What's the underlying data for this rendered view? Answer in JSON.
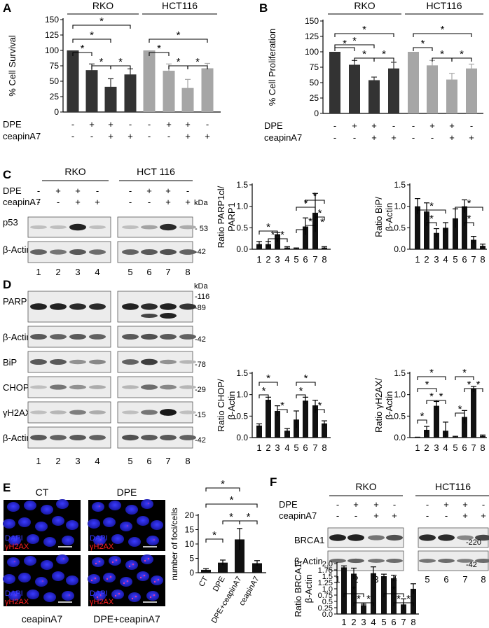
{
  "panels": {
    "A": {
      "letter": "A",
      "groups": [
        "RKO",
        "HCT116"
      ],
      "ylabel": "% Cell Survival",
      "yticks": [
        "0",
        "25",
        "50",
        "75",
        "100",
        "125",
        "150"
      ],
      "row_labels": [
        "DPE",
        "ceapinA7"
      ],
      "dpe_signs": [
        "-",
        "+",
        "+",
        "-",
        "-",
        "+",
        "+",
        "-"
      ],
      "ceapin_signs": [
        "-",
        "-",
        "+",
        "+",
        "-",
        "-",
        "+",
        "+"
      ],
      "star": "*"
    },
    "B": {
      "letter": "B",
      "groups": [
        "RKO",
        "HCT116"
      ],
      "ylabel": "% Cell Proliferation",
      "yticks": [
        "0",
        "25",
        "50",
        "75",
        "100",
        "125",
        "150"
      ],
      "row_labels": [
        "DPE",
        "ceapinA7"
      ],
      "dpe_signs": [
        "-",
        "+",
        "+",
        "-",
        "-",
        "+",
        "+",
        "-"
      ],
      "ceapin_signs": [
        "-",
        "-",
        "+",
        "+",
        "-",
        "-",
        "+",
        "+"
      ],
      "star": "*"
    },
    "C": {
      "letter": "C",
      "groups": [
        "RKO",
        "HCT 116"
      ],
      "row_labels": [
        "DPE",
        "ceapinA7"
      ],
      "dpe_signs": [
        "-",
        "+",
        "+",
        "-",
        "-",
        "+",
        "+",
        "-"
      ],
      "ceapin_signs": [
        "-",
        "-",
        "+",
        "+",
        "-",
        "-",
        "+",
        "+"
      ],
      "unit": "kDa",
      "blots": [
        {
          "label": "p53",
          "kda": "- 53"
        },
        {
          "label": "β-Actin",
          "kda": "-42"
        }
      ],
      "lanes": [
        "1",
        "2",
        "3",
        "4",
        "5",
        "6",
        "7",
        "8"
      ]
    },
    "D": {
      "letter": "D",
      "unit": "kDa",
      "blots": [
        {
          "label": "PARP",
          "kda": "-116",
          "kda2": "-89"
        },
        {
          "label": "β-Actin",
          "kda": "-42"
        },
        {
          "label": "BiP",
          "kda": "-78"
        },
        {
          "label": "CHOP",
          "kda": "-29"
        },
        {
          "label": "γH2AX",
          "kda": "-15"
        },
        {
          "label": "β-Actin",
          "kda": "-42"
        }
      ],
      "lanes": [
        "1",
        "2",
        "3",
        "4",
        "5",
        "6",
        "7",
        "8"
      ]
    },
    "E": {
      "letter": "E",
      "images": [
        {
          "title": "CT",
          "dapi": "DAPI",
          "h2ax": "γH2AX"
        },
        {
          "title": "DPE",
          "dapi": "DAPI",
          "h2ax": "γH2AX"
        },
        {
          "title": "ceapinA7",
          "dapi": "DAPI",
          "h2ax": "γH2AX"
        },
        {
          "title": "DPE+ceapinA7",
          "dapi": "DAPI",
          "h2ax": "γH2AX"
        }
      ],
      "ylabel": "number of foci/cells",
      "yticks": [
        "0",
        "5",
        "10",
        "15",
        "20"
      ],
      "star": "*"
    },
    "F": {
      "letter": "F",
      "groups": [
        "RKO",
        "HCT116"
      ],
      "row_labels": [
        "DPE",
        "ceapinA7"
      ],
      "dpe_signs": [
        "-",
        "+",
        "+",
        "-",
        "-",
        "+",
        "+",
        "-"
      ],
      "ceapin_signs": [
        "-",
        "-",
        "+",
        "+",
        "-",
        "-",
        "+",
        "+"
      ],
      "unit": "kDa",
      "blots": [
        {
          "label": "BRCA1",
          "kda": "-220"
        },
        {
          "label": "β-Actin",
          "kda": "-42"
        }
      ],
      "lanes": [
        "1",
        "2",
        "3",
        "4",
        "5",
        "6",
        "7",
        "8"
      ]
    }
  },
  "chart_data": [
    {
      "type": "bar",
      "panel": "A",
      "ylabel": "% Cell Survival",
      "ylim": [
        0,
        150
      ],
      "categories": [
        "1",
        "2",
        "3",
        "4",
        "5",
        "6",
        "7",
        "8"
      ],
      "values": [
        100,
        68,
        41,
        61,
        100,
        67,
        39,
        71
      ],
      "errors": [
        0,
        10,
        13,
        9,
        0,
        11,
        14,
        8
      ],
      "colors": [
        "#333333",
        "#333333",
        "#333333",
        "#333333",
        "#a6a6a6",
        "#a6a6a6",
        "#a6a6a6",
        "#a6a6a6"
      ]
    },
    {
      "type": "bar",
      "panel": "B",
      "ylabel": "% Cell Proliferation",
      "ylim": [
        0,
        150
      ],
      "categories": [
        "1",
        "2",
        "3",
        "4",
        "5",
        "6",
        "7",
        "8"
      ],
      "values": [
        100,
        79,
        54,
        73,
        100,
        78,
        55,
        73
      ],
      "errors": [
        0,
        7,
        5,
        10,
        0,
        8,
        10,
        7
      ],
      "colors": [
        "#333333",
        "#333333",
        "#333333",
        "#333333",
        "#a6a6a6",
        "#a6a6a6",
        "#a6a6a6",
        "#a6a6a6"
      ]
    },
    {
      "type": "bar",
      "panel": "C",
      "ylabel": "Ratio PARP1cl/ PARP1",
      "ylim": [
        0,
        1.5
      ],
      "yticks": [
        "0.0",
        "0.5",
        "1.0",
        "1.5"
      ],
      "categories": [
        "1",
        "2",
        "3",
        "4",
        "5",
        "6",
        "7",
        "8"
      ],
      "values": [
        0.12,
        0.12,
        0.35,
        0.04,
        0.02,
        0.53,
        0.85,
        0.04
      ],
      "errors": [
        0.06,
        0.06,
        0.04,
        0.02,
        0.01,
        0.2,
        0.45,
        0.02
      ]
    },
    {
      "type": "bar",
      "panel": "C",
      "ylabel": "Ratio BiP/ β-Actin",
      "ylim": [
        0,
        1.5
      ],
      "yticks": [
        "0.0",
        "0.5",
        "1.0",
        "1.5"
      ],
      "categories": [
        "1",
        "2",
        "3",
        "4",
        "5",
        "6",
        "7",
        "8"
      ],
      "values": [
        1.0,
        0.88,
        0.38,
        0.5,
        0.72,
        1.0,
        0.22,
        0.08
      ],
      "errors": [
        0.18,
        0.2,
        0.1,
        0.12,
        0.22,
        0.15,
        0.08,
        0.04
      ]
    },
    {
      "type": "bar",
      "panel": "D",
      "ylabel": "Ratio CHOP/ β-Actin",
      "ylim": [
        0,
        1.5
      ],
      "yticks": [
        "0.0",
        "0.5",
        "1.0",
        "1.5"
      ],
      "categories": [
        "1",
        "2",
        "3",
        "4",
        "5",
        "6",
        "7",
        "8"
      ],
      "values": [
        0.28,
        0.88,
        0.62,
        0.16,
        0.42,
        0.86,
        0.75,
        0.33
      ],
      "errors": [
        0.04,
        0.06,
        0.12,
        0.05,
        0.2,
        0.08,
        0.12,
        0.06
      ]
    },
    {
      "type": "bar",
      "panel": "D",
      "ylabel": "Ratio γH2AX/ β-Actin",
      "ylim": [
        0,
        1.5
      ],
      "yticks": [
        "0.0",
        "0.5",
        "1.0",
        "1.5"
      ],
      "categories": [
        "1",
        "2",
        "3",
        "4",
        "5",
        "6",
        "7",
        "8"
      ],
      "values": [
        0.0,
        0.18,
        0.74,
        0.16,
        0.02,
        0.48,
        1.15,
        0.04
      ],
      "errors": [
        0.01,
        0.08,
        0.1,
        0.2,
        0.01,
        0.15,
        0.04,
        0.02
      ]
    },
    {
      "type": "bar",
      "panel": "E",
      "ylabel": "number of foci/cells",
      "ylim": [
        0,
        20
      ],
      "categories": [
        "CT",
        "DPE",
        "DPE+ceapinA7",
        "ceapinA7"
      ],
      "values": [
        1.0,
        3.5,
        11.6,
        3.3
      ],
      "errors": [
        0.4,
        0.9,
        3.8,
        0.9
      ]
    },
    {
      "type": "bar",
      "panel": "F",
      "ylabel": "Ratio BRCA1/ β-Actin",
      "ylim": [
        0,
        2.0
      ],
      "yticks": [
        "0.0",
        "0.25",
        "0.5",
        "0.75",
        "1.0",
        "1.25",
        "1.5",
        "1.75",
        "2.0"
      ],
      "categories": [
        "1",
        "2",
        "3",
        "4",
        "5",
        "6",
        "7",
        "8"
      ],
      "values": [
        1.85,
        1.6,
        0.35,
        1.62,
        1.5,
        1.42,
        0.38,
        1.0
      ],
      "errors": [
        0.06,
        0.22,
        0.04,
        0.25,
        0.08,
        0.12,
        0.22,
        0.2
      ]
    }
  ]
}
